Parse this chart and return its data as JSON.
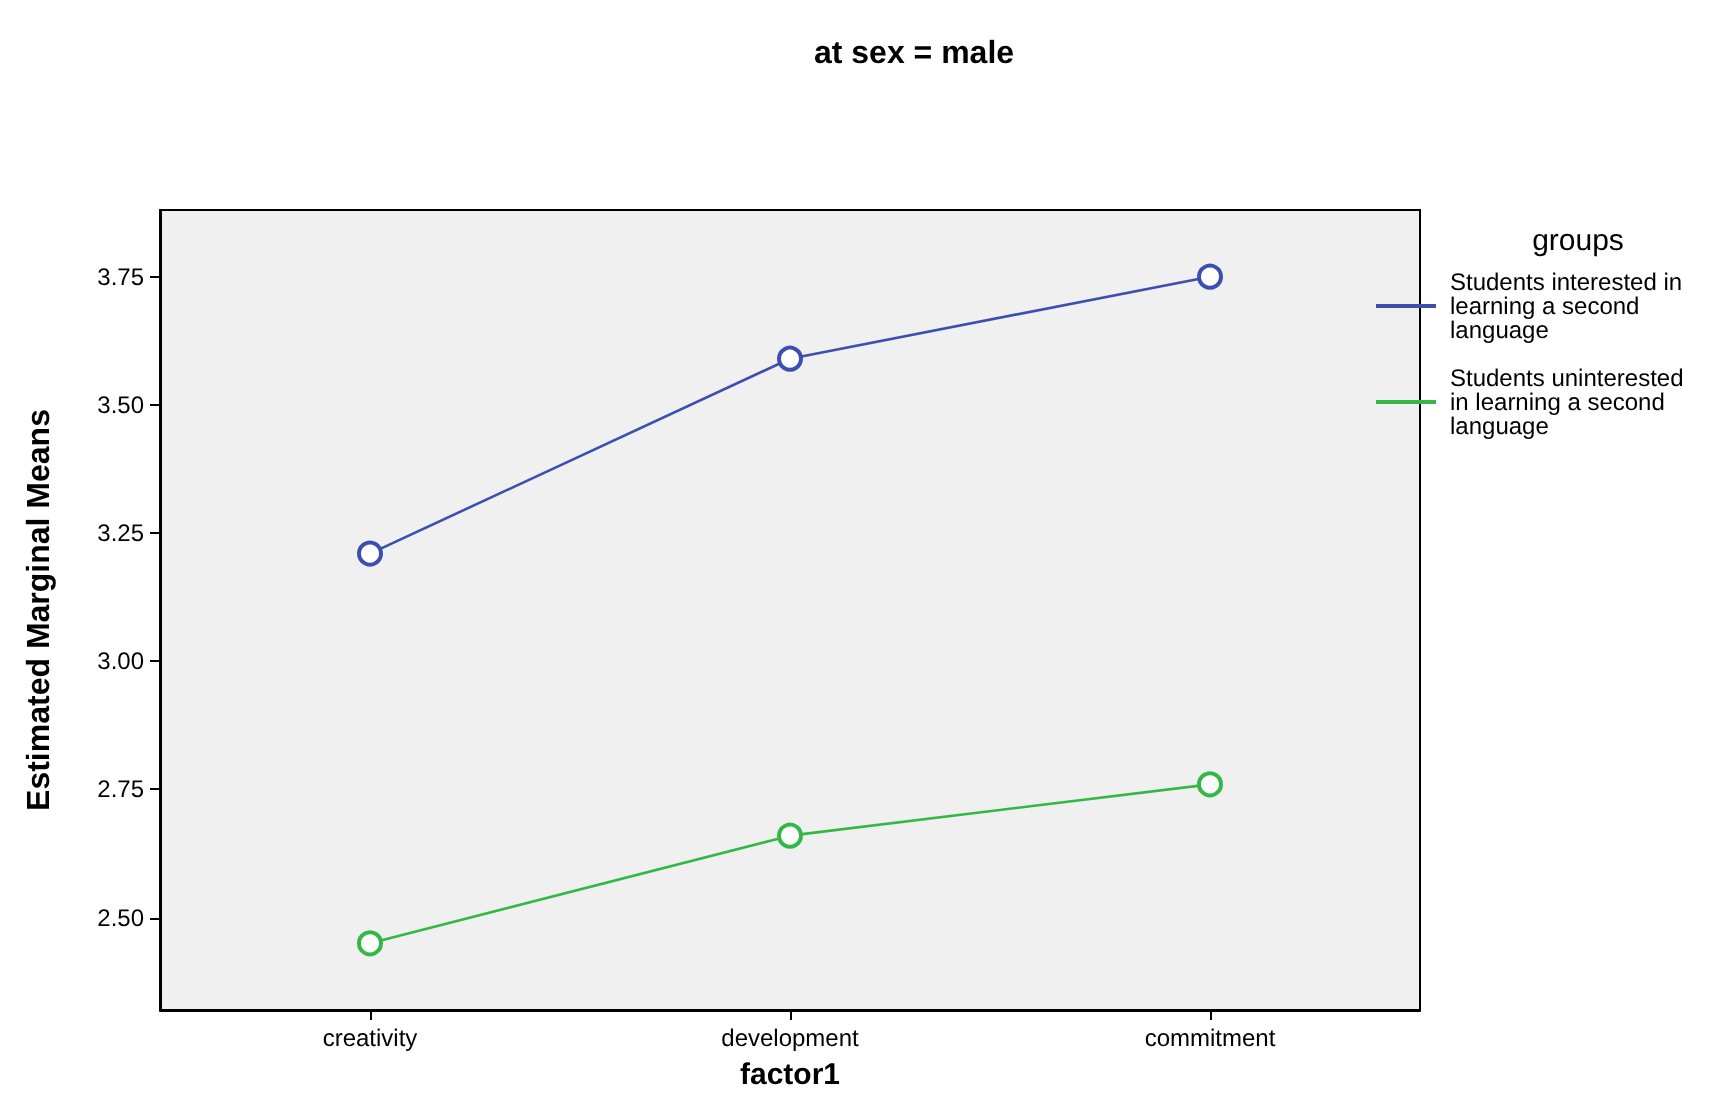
{
  "chart_data": {
    "type": "line",
    "title": "at sex = male",
    "xlabel": "factor1",
    "ylabel": "Estimated Marginal Means",
    "legend_title": "groups",
    "categories": [
      "creativity",
      "development",
      "commitment"
    ],
    "series": [
      {
        "name": "Students interested in learning a second language",
        "color": "#3c4fb0",
        "values": [
          3.21,
          3.59,
          3.75
        ]
      },
      {
        "name": "Students uninterested in learning a second language",
        "color": "#34b845",
        "values": [
          2.45,
          2.66,
          2.76
        ]
      }
    ],
    "ylim": [
      2.32,
      3.88
    ],
    "yticks": [
      {
        "value": 2.5,
        "label": "2.50"
      },
      2.75,
      {
        "value": 3.0,
        "label": "3.00"
      },
      3.25,
      {
        "value": 3.5,
        "label": "3.50"
      },
      3.75
    ],
    "grid": false,
    "legend": "right",
    "marker": "circle",
    "line_style": "solid"
  }
}
